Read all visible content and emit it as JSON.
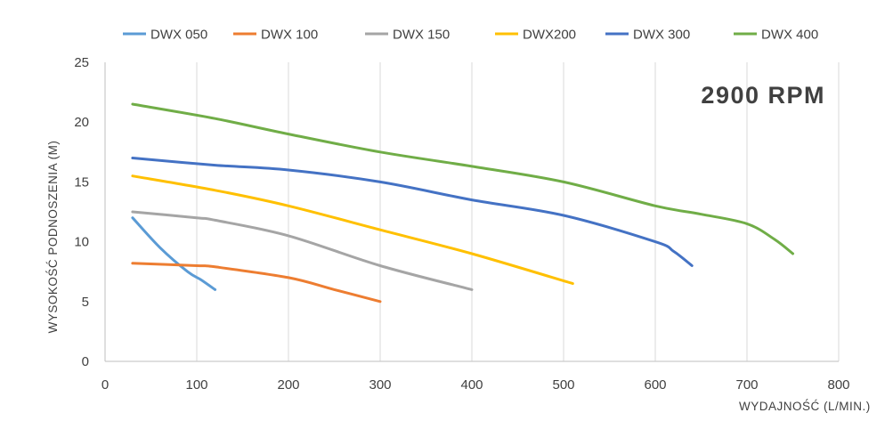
{
  "chart_data": {
    "type": "line",
    "annotation": "2900 RPM",
    "xlabel": "WYDAJNOŚĆ (L/MIN.)",
    "ylabel": "WYSOKOŚĆ PODNOSZENIA (M)",
    "xlim": [
      0,
      800
    ],
    "ylim": [
      0,
      25
    ],
    "x_ticks": [
      0,
      100,
      200,
      300,
      400,
      500,
      600,
      700,
      800
    ],
    "y_ticks": [
      0,
      5,
      10,
      15,
      20,
      25
    ],
    "grid": "vertical",
    "legend_position": "top",
    "series": [
      {
        "name": "DWX 050",
        "color": "#5b9bd5",
        "x": [
          30,
          60,
          90,
          105,
          120
        ],
        "y": [
          12,
          9.5,
          7.5,
          6.8,
          6
        ]
      },
      {
        "name": "DWX 100",
        "color": "#ed7d31",
        "x": [
          30,
          100,
          120,
          200,
          250,
          300
        ],
        "y": [
          8.2,
          8,
          7.9,
          7,
          6,
          5
        ]
      },
      {
        "name": "DWX 150",
        "color": "#a5a5a5",
        "x": [
          30,
          100,
          120,
          200,
          300,
          400
        ],
        "y": [
          12.5,
          12,
          11.8,
          10.5,
          8,
          6
        ]
      },
      {
        "name": "DWX200",
        "color": "#ffc000",
        "x": [
          30,
          120,
          200,
          300,
          400,
          510
        ],
        "y": [
          15.5,
          14.3,
          13,
          11,
          9,
          6.5
        ]
      },
      {
        "name": "DWX 300",
        "color": "#4472c4",
        "x": [
          30,
          120,
          200,
          300,
          400,
          500,
          600,
          620,
          640
        ],
        "y": [
          17,
          16.4,
          16,
          15,
          13.5,
          12.2,
          10,
          9.2,
          8
        ]
      },
      {
        "name": "DWX 400",
        "color": "#70ad47",
        "x": [
          30,
          120,
          200,
          300,
          400,
          500,
          600,
          650,
          700,
          730,
          750
        ],
        "y": [
          21.5,
          20.3,
          19,
          17.5,
          16.3,
          15,
          13,
          12.3,
          11.5,
          10.2,
          9
        ]
      }
    ]
  }
}
